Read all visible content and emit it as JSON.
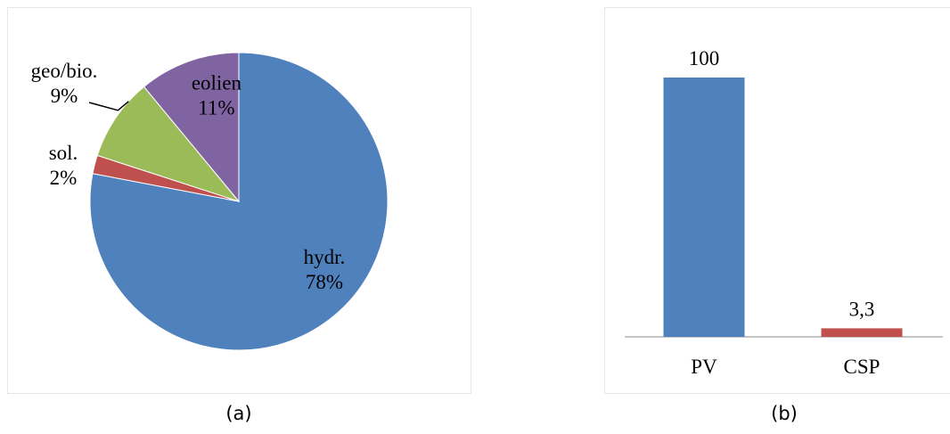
{
  "chart_data": [
    {
      "type": "pie",
      "slices": [
        {
          "label": "hydr.",
          "value": 78,
          "pct_label": "78%",
          "color": "#4F81BD"
        },
        {
          "label": "sol.",
          "value": 2,
          "pct_label": "2%",
          "color": "#C0504D"
        },
        {
          "label": "geo/bio.",
          "value": 9,
          "pct_label": "9%",
          "color": "#9BBB59"
        },
        {
          "label": "eolien",
          "value": 11,
          "pct_label": "11%",
          "color": "#8064A2"
        }
      ]
    },
    {
      "type": "bar",
      "categories": [
        "PV",
        "CSP"
      ],
      "values": [
        100,
        3.3
      ],
      "value_labels": [
        "100",
        "3,3"
      ],
      "colors": [
        "#4F81BD",
        "#C0504D"
      ]
    }
  ],
  "captions": {
    "a": "(a)",
    "b": "(b)"
  }
}
